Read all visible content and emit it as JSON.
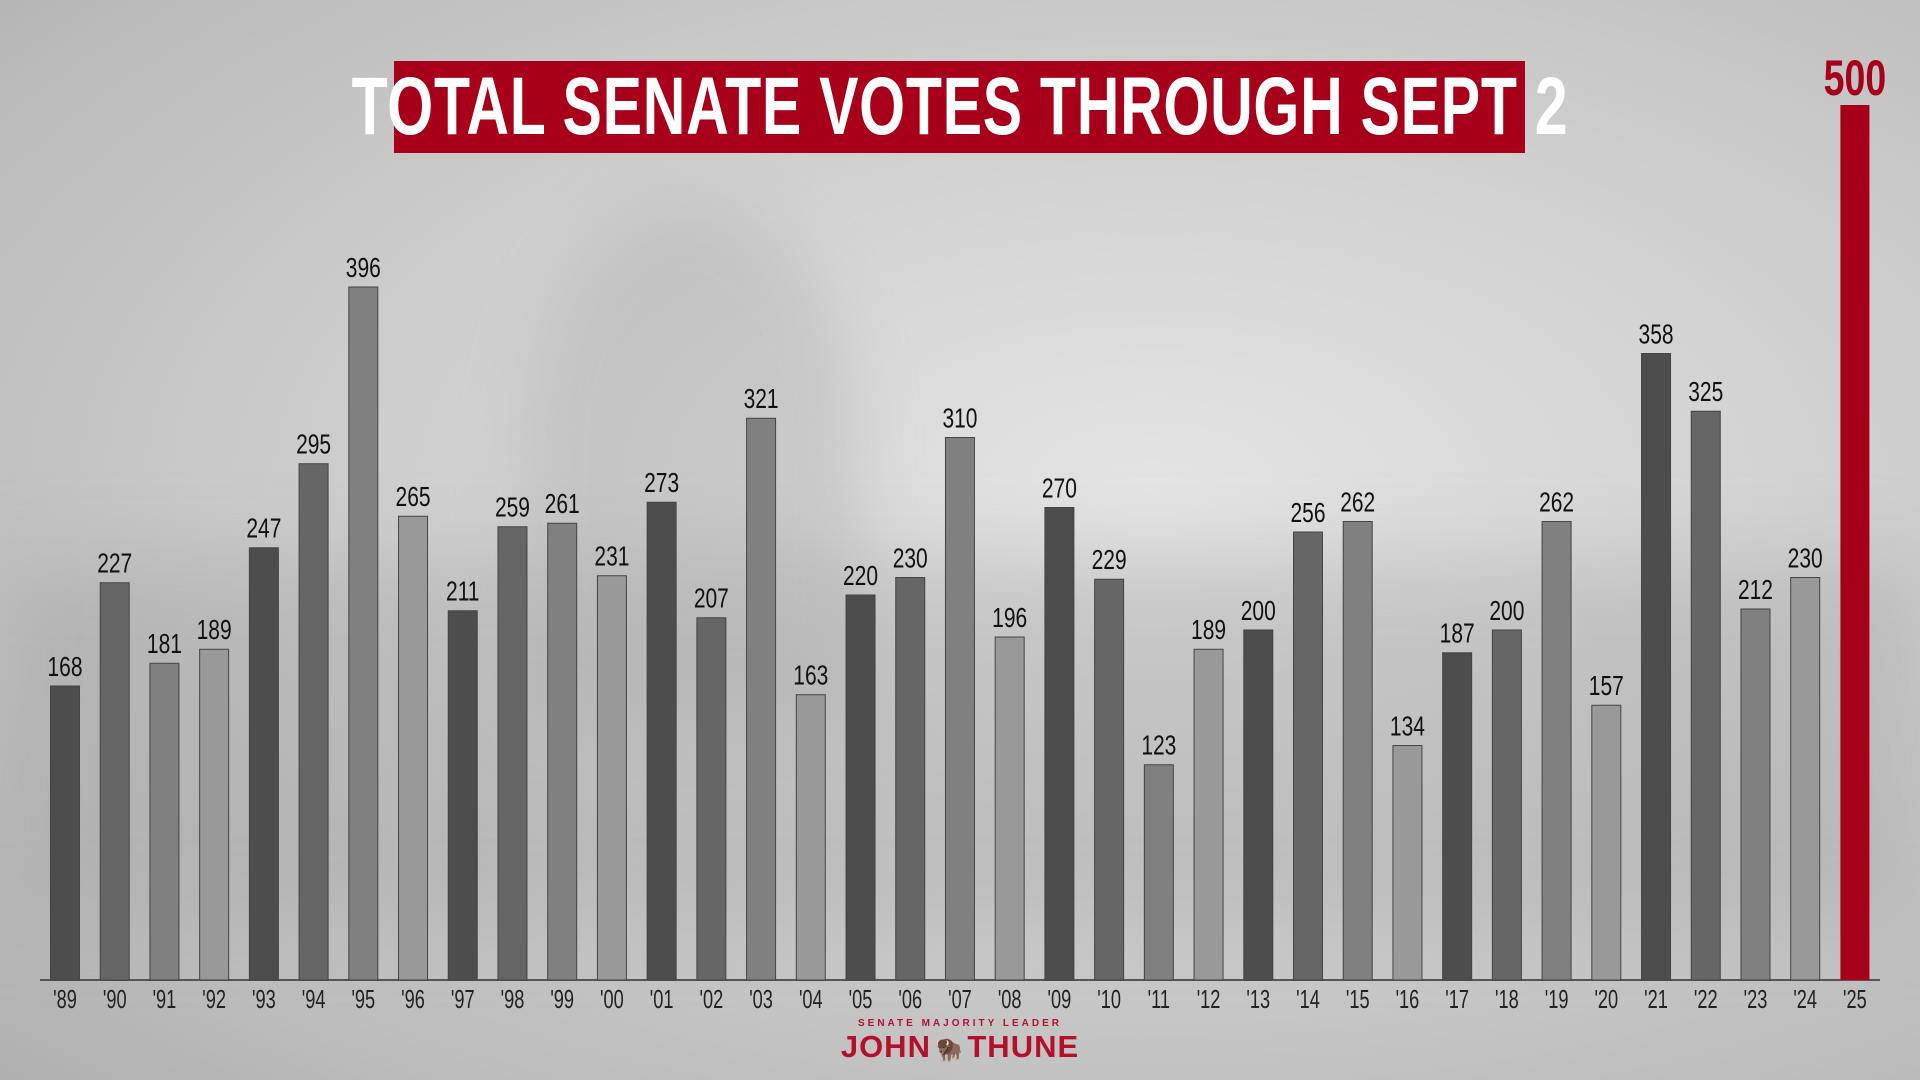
{
  "chart_data": {
    "type": "bar",
    "title": "TOTAL SENATE VOTES THROUGH SEPT 2",
    "xlabel": "",
    "ylabel": "",
    "grid": false,
    "categories": [
      "'89",
      "'90",
      "'91",
      "'92",
      "'93",
      "'94",
      "'95",
      "'96",
      "'97",
      "'98",
      "'99",
      "'00",
      "'01",
      "'02",
      "'03",
      "'04",
      "'05",
      "'06",
      "'07",
      "'08",
      "'09",
      "'10",
      "'11",
      "'12",
      "'13",
      "'14",
      "'15",
      "'16",
      "'17",
      "'18",
      "'19",
      "'20",
      "'21",
      "'22",
      "'23",
      "'24",
      "'25"
    ],
    "values": [
      168,
      227,
      181,
      189,
      247,
      295,
      396,
      265,
      211,
      259,
      261,
      231,
      273,
      207,
      321,
      163,
      220,
      230,
      310,
      196,
      270,
      229,
      123,
      189,
      200,
      256,
      262,
      134,
      187,
      200,
      262,
      157,
      358,
      325,
      212,
      230,
      500
    ],
    "ylim": [
      0,
      500
    ],
    "colors": [
      "#4d4d4d",
      "#666666",
      "#808080",
      "#999999"
    ],
    "highlight_color": "#a8001a"
  },
  "logo": {
    "subtitle": "SENATE MAJORITY LEADER",
    "first": "JOHN",
    "last": "THUNE",
    "icon": "bison-icon"
  }
}
